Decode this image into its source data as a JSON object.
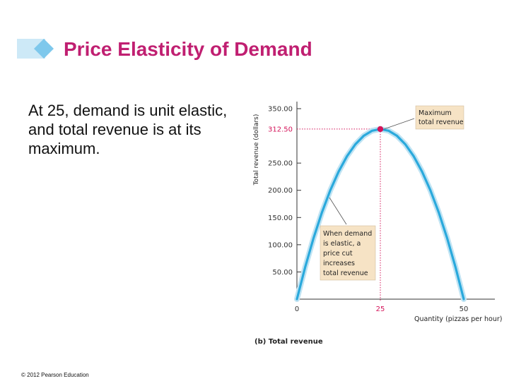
{
  "slide": {
    "title": "Price Elasticity of Demand",
    "body": "At 25, demand is unit elastic, and total revenue is at its maximum.",
    "footer": "© 2012 Pearson Education"
  },
  "colors": {
    "title": "#c01f71",
    "accent_diamond": "#7ec8ec",
    "curve": "#2aa9dc",
    "marker": "#d4145a",
    "guide": "#d4145a",
    "callout_bg": "#f6e3c5"
  },
  "chart_data": {
    "type": "line",
    "caption": "(b) Total revenue",
    "xlabel": "Quantity (pizzas per hour)",
    "ylabel": "Total revenue (dollars)",
    "xlim": [
      0,
      50
    ],
    "ylim": [
      0,
      350
    ],
    "x_ticks": [
      0,
      25,
      50
    ],
    "y_ticks": [
      "50.00",
      "100.00",
      "150.00",
      "200.00",
      "250.00",
      "312.50",
      "350.00"
    ],
    "series": [
      {
        "x": [
          0,
          2.5,
          5,
          7.5,
          10,
          12.5,
          15,
          17.5,
          20,
          22.5,
          25,
          27.5,
          30,
          32.5,
          35,
          37.5,
          40,
          42.5,
          45,
          47.5,
          50
        ],
        "y": [
          0,
          59.375,
          112.5,
          159.375,
          200,
          234.375,
          262.5,
          284.375,
          300,
          309.375,
          312.5,
          309.375,
          300,
          284.375,
          262.5,
          234.375,
          200,
          159.375,
          112.5,
          59.375,
          0
        ]
      }
    ],
    "highlight": {
      "x": 25,
      "y": 312.5,
      "x_label": "25",
      "y_label": "312.50"
    },
    "annotations": [
      {
        "lines": [
          "Maximum",
          "total revenue"
        ]
      },
      {
        "lines": [
          "When demand",
          "is elastic, a",
          "price cut",
          "increases",
          "total revenue"
        ]
      }
    ]
  }
}
